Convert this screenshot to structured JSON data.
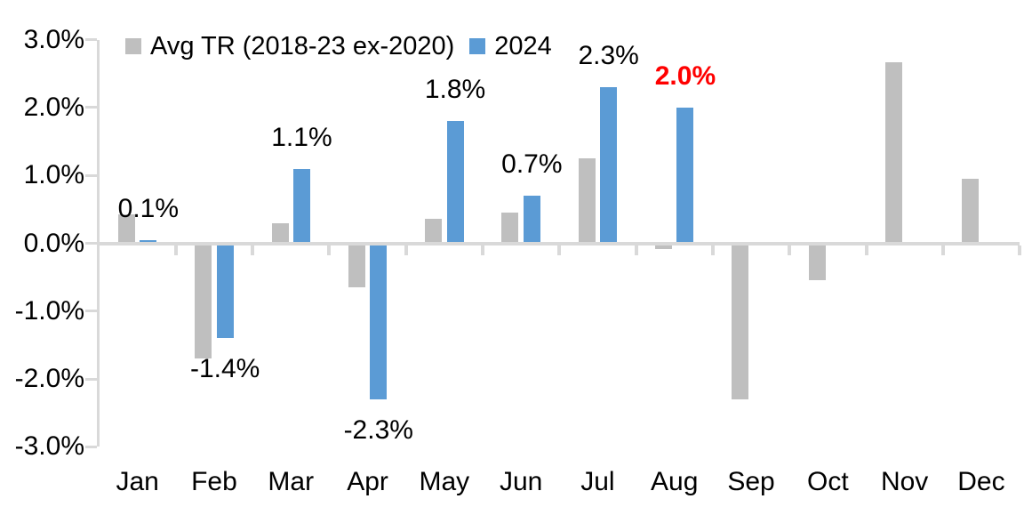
{
  "chart_data": {
    "type": "bar",
    "title": "",
    "xlabel": "",
    "ylabel": "",
    "categories": [
      "Jan",
      "Feb",
      "Mar",
      "Apr",
      "May",
      "Jun",
      "Jul",
      "Aug",
      "Sep",
      "Oct",
      "Nov",
      "Dec"
    ],
    "series": [
      {
        "name": "Avg TR (2018-23 ex-2020)",
        "color": "#BFBFBF",
        "values": [
          0.42,
          -1.7,
          0.3,
          -0.65,
          0.36,
          0.45,
          1.25,
          -0.08,
          -2.3,
          -0.55,
          2.67,
          0.95
        ]
      },
      {
        "name": "2024",
        "color": "#5B9BD5",
        "values": [
          0.05,
          -1.4,
          1.1,
          -2.3,
          1.8,
          0.7,
          2.3,
          2.0,
          null,
          null,
          null,
          null
        ]
      }
    ],
    "data_labels": [
      {
        "category": "Jan",
        "text": "0.1%",
        "color": "#000000",
        "bold": false
      },
      {
        "category": "Feb",
        "text": "-1.4%",
        "color": "#000000",
        "bold": false
      },
      {
        "category": "Mar",
        "text": "1.1%",
        "color": "#000000",
        "bold": false
      },
      {
        "category": "Apr",
        "text": "-2.3%",
        "color": "#000000",
        "bold": false
      },
      {
        "category": "May",
        "text": "1.8%",
        "color": "#000000",
        "bold": false
      },
      {
        "category": "Jun",
        "text": "0.7%",
        "color": "#000000",
        "bold": false
      },
      {
        "category": "Jul",
        "text": "2.3%",
        "color": "#000000",
        "bold": false
      },
      {
        "category": "Aug",
        "text": "2.0%",
        "color": "#FF0000",
        "bold": true
      }
    ],
    "ylim": [
      -3.0,
      3.0
    ],
    "ytick_labels": [
      "3.0%",
      "2.0%",
      "1.0%",
      "0.0%",
      "-1.0%",
      "-2.0%",
      "-3.0%"
    ],
    "ytick_values": [
      3,
      2,
      1,
      0,
      -1,
      -2,
      -3
    ],
    "grid": false,
    "legend_position": "top-left",
    "axis_color": "#D9D9D9",
    "text_color": "#000000",
    "highlight_color": "#FF0000",
    "background": "#FFFFFF"
  }
}
